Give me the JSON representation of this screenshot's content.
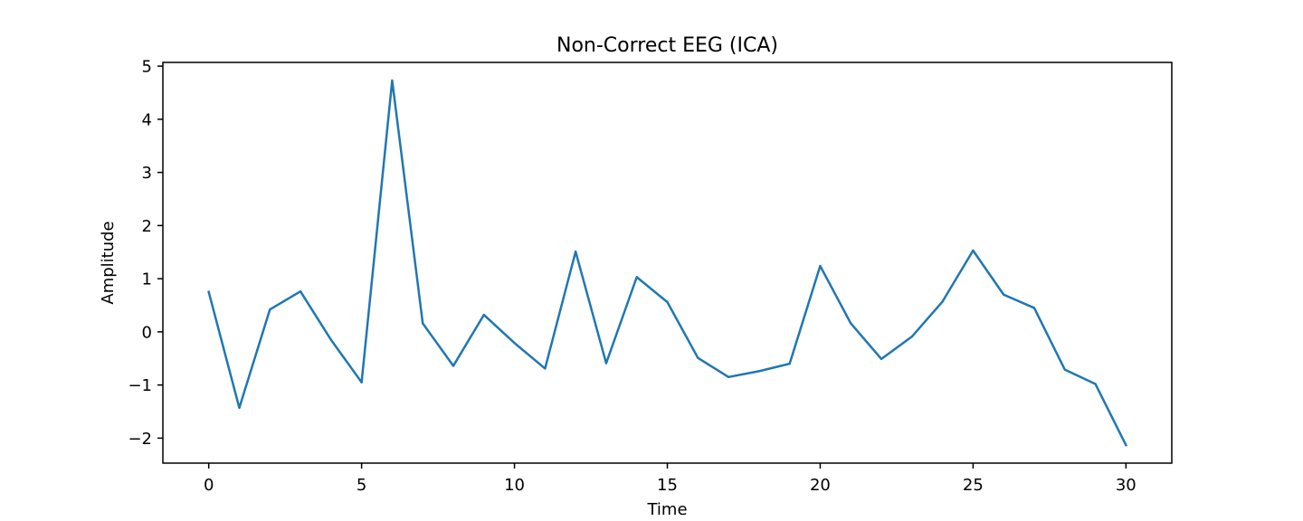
{
  "chart_data": {
    "type": "line",
    "title": "Non-Correct EEG (ICA)",
    "xlabel": "Time",
    "ylabel": "Amplitude",
    "xlim": [
      -1.5,
      31.5
    ],
    "ylim": [
      -2.47,
      5.07
    ],
    "x_ticks": [
      0,
      5,
      10,
      15,
      20,
      25,
      30
    ],
    "x_tick_labels": [
      "0",
      "5",
      "10",
      "15",
      "20",
      "25",
      "30"
    ],
    "y_ticks": [
      -2,
      -1,
      0,
      1,
      2,
      3,
      4,
      5
    ],
    "y_tick_labels": [
      "−2",
      "−1",
      "0",
      "1",
      "2",
      "3",
      "4",
      "5"
    ],
    "grid": false,
    "line_color": "#1f77b4",
    "series": [
      {
        "x": [
          0,
          1,
          2,
          3,
          4,
          5,
          6,
          7,
          8,
          9,
          10,
          11,
          12,
          13,
          14,
          15,
          16,
          17,
          18,
          19,
          20,
          21,
          22,
          23,
          24,
          25,
          26,
          27,
          28,
          29,
          30
        ],
        "values": [
          0.75,
          -1.43,
          0.42,
          0.76,
          -0.15,
          -0.95,
          4.73,
          0.16,
          -0.64,
          0.32,
          -0.21,
          -0.69,
          1.51,
          -0.59,
          1.03,
          0.56,
          -0.49,
          -0.85,
          -0.74,
          -0.6,
          1.24,
          0.16,
          -0.51,
          -0.09,
          0.57,
          1.53,
          0.7,
          0.45,
          -0.71,
          -0.98,
          -2.13
        ]
      }
    ]
  }
}
